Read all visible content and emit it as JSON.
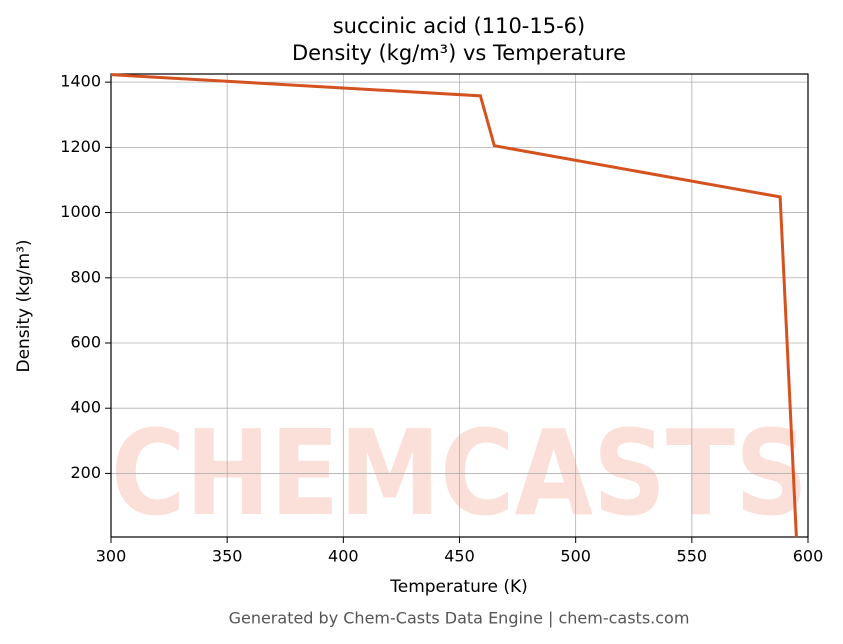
{
  "chart_data": {
    "type": "line",
    "title": "succinic acid (110-15-6)",
    "subtitle": "Density (kg/m³) vs Temperature",
    "x_label": "Temperature (K)",
    "y_label": "Density (kg/m³)",
    "footer": "Generated by Chem-Casts Data Engine | chem-casts.com",
    "watermark": "CHEMCASTS",
    "x": [
      300,
      459,
      465,
      588,
      595
    ],
    "series": [
      {
        "name": "Density",
        "color": "#d4521f",
        "values": [
          1423,
          1358,
          1205,
          1048,
          5
        ]
      }
    ],
    "xlim": [
      300,
      600
    ],
    "ylim": [
      5,
      1425
    ],
    "xticks": [
      300,
      350,
      400,
      450,
      500,
      550,
      600
    ],
    "yticks": [
      200,
      400,
      600,
      800,
      1000,
      1200,
      1400
    ],
    "grid": true
  }
}
